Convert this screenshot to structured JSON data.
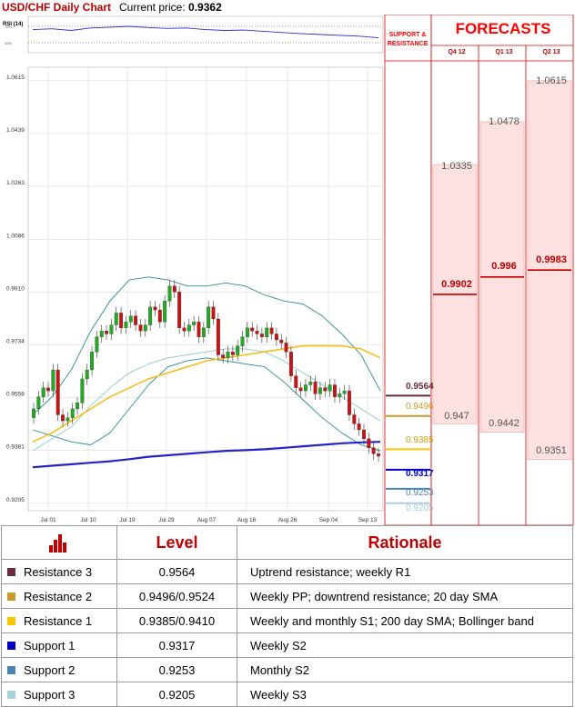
{
  "header": {
    "title": "USD/CHF Daily Chart",
    "price_label": "Current price:",
    "price_value": "0.9362"
  },
  "rsi": {
    "label": "RSI (14)",
    "ticks": [
      "70%",
      "30%"
    ]
  },
  "forecasts": {
    "title": "FORECASTS",
    "sr_header": "SUPPORT & RESISTANCE",
    "quarters": [
      {
        "label": "Q4 12",
        "high": "1.0335",
        "mid": "0.9902",
        "low": "0.947"
      },
      {
        "label": "Q1 13",
        "high": "1.0478",
        "mid": "0.996",
        "low": "0.9442"
      },
      {
        "label": "Q2 13",
        "high": "1.0615",
        "mid": "0.9983",
        "low": "0.9351"
      }
    ]
  },
  "levels_table": {
    "header": {
      "level": "Level",
      "rationale": "Rationale"
    },
    "rows": [
      {
        "name": "Resistance 3",
        "level": "0.9564",
        "rationale": "Uptrend resistance; weekly R1"
      },
      {
        "name": "Resistance 2",
        "level": "0.9496/0.9524",
        "rationale": "Weekly PP; downtrend resistance; 20 day SMA"
      },
      {
        "name": "Resistance 1",
        "level": "0.9385/0.9410",
        "rationale": "Weekly and monthly S1; 200 day SMA; Bollinger band"
      },
      {
        "name": "Support 1",
        "level": "0.9317",
        "rationale": "Weekly S2"
      },
      {
        "name": "Support 2",
        "level": "0.9253",
        "rationale": "Monthly S2"
      },
      {
        "name": "Support 3",
        "level": "0.9205",
        "rationale": "Weekly S3"
      }
    ]
  },
  "chart_data": {
    "type": "line",
    "title": "USD/CHF Daily Chart",
    "x_ticks": [
      "Jul 01",
      "Jul 10",
      "Jul 19",
      "Jul 29",
      "Aug 07",
      "Aug 16",
      "Aug 26",
      "Sep 04",
      "Sep 13"
    ],
    "y_ticks": [
      1.0615,
      1.0439,
      1.0263,
      1.0086,
      0.991,
      0.9734,
      0.9558,
      0.9381,
      0.9205
    ],
    "ylim": [
      0.918,
      1.066
    ],
    "grid": true,
    "colors": {
      "sma20": "#8fc8c8",
      "sma50": "#f5bf20",
      "sma200": "#2323c8",
      "bollinger": "#2d8b8b",
      "candle_up": "#22aa22",
      "candle_down": "#cc1111",
      "rsi_line": "#2c2cd0",
      "r3": "#6b2b3f",
      "r2": "#c89a26",
      "r1": "#ffc400",
      "s1": "#0000cc",
      "s2": "#4a84b4",
      "s3": "#a7d0dc",
      "forecast_bg": "#fde0e0",
      "accent_red": "#c00000"
    },
    "candles_close": [
      0.952,
      0.956,
      0.959,
      0.958,
      0.965,
      0.95,
      0.948,
      0.949,
      0.952,
      0.954,
      0.962,
      0.965,
      0.971,
      0.976,
      0.978,
      0.977,
      0.98,
      0.984,
      0.979,
      0.981,
      0.983,
      0.98,
      0.978,
      0.98,
      0.986,
      0.985,
      0.981,
      0.988,
      0.993,
      0.991,
      0.979,
      0.978,
      0.98,
      0.981,
      0.976,
      0.979,
      0.986,
      0.982,
      0.97,
      0.969,
      0.971,
      0.97,
      0.973,
      0.976,
      0.979,
      0.978,
      0.977,
      0.976,
      0.979,
      0.977,
      0.975,
      0.974,
      0.971,
      0.963,
      0.959,
      0.958,
      0.96,
      0.961,
      0.957,
      0.959,
      0.958,
      0.96,
      0.956,
      0.957,
      0.958,
      0.95,
      0.947,
      0.945,
      0.942,
      0.939,
      0.937,
      0.9362
    ],
    "sma20": [
      0.938,
      0.942,
      0.946,
      0.953,
      0.959,
      0.964,
      0.967,
      0.969,
      0.97,
      0.971,
      0.972,
      0.972,
      0.971,
      0.968,
      0.964,
      0.96,
      0.956,
      0.952,
      0.948
    ],
    "sma50": [
      0.941,
      0.944,
      0.948,
      0.952,
      0.956,
      0.959,
      0.962,
      0.964,
      0.966,
      0.968,
      0.969,
      0.97,
      0.971,
      0.972,
      0.973,
      0.973,
      0.973,
      0.972,
      0.969
    ],
    "sma200": [
      0.9325,
      0.933,
      0.9335,
      0.934,
      0.9345,
      0.9352,
      0.936,
      0.9365,
      0.937,
      0.9375,
      0.938,
      0.9382,
      0.9385,
      0.939,
      0.9395,
      0.94,
      0.9405,
      0.9408,
      0.941
    ],
    "bollinger_upper": [
      0.95,
      0.956,
      0.965,
      0.978,
      0.988,
      0.995,
      0.996,
      0.995,
      0.993,
      0.993,
      0.994,
      0.993,
      0.99,
      0.988,
      0.987,
      0.983,
      0.977,
      0.97,
      0.958
    ],
    "bollinger_lower": [
      0.945,
      0.943,
      0.941,
      0.94,
      0.944,
      0.952,
      0.96,
      0.966,
      0.968,
      0.969,
      0.968,
      0.967,
      0.966,
      0.961,
      0.955,
      0.949,
      0.944,
      0.94,
      0.938
    ],
    "rsi_values": [
      62,
      64,
      60,
      66,
      68,
      70,
      67,
      65,
      66,
      62,
      60,
      61,
      58,
      55,
      52,
      50,
      48,
      46,
      42
    ],
    "levels": {
      "resistance_3": 0.9564,
      "resistance_2": 0.9496,
      "resistance_1": 0.9385,
      "support_1": 0.9317,
      "support_2": 0.9253,
      "support_3": 0.9205
    }
  }
}
